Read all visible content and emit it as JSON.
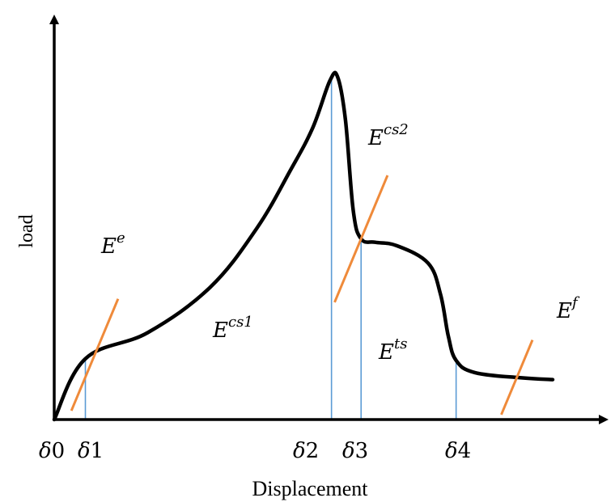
{
  "chart_data": {
    "type": "line",
    "xlabel": "Displacement",
    "ylabel": "load",
    "x_ticks": [
      {
        "sym": "δ",
        "sub": "0"
      },
      {
        "sym": "δ",
        "sub": "1"
      },
      {
        "sym": "δ",
        "sub": "2"
      },
      {
        "sym": "δ",
        "sub": "3"
      },
      {
        "sym": "δ",
        "sub": "4"
      }
    ],
    "energy_labels": [
      {
        "base": "E",
        "sup": "e"
      },
      {
        "base": "E",
        "sup": "cs1"
      },
      {
        "base": "E",
        "sup": "cs2"
      },
      {
        "base": "E",
        "sup": "ts"
      },
      {
        "base": "E",
        "sup": "f"
      }
    ],
    "curve_points": [
      [
        0,
        0
      ],
      [
        1,
        0.175
      ],
      [
        3,
        0.25
      ],
      [
        5,
        0.38
      ],
      [
        6.5,
        0.55
      ],
      [
        7.6,
        0.72
      ],
      [
        8.3,
        0.84
      ],
      [
        8.85,
        0.975
      ],
      [
        9.1,
        0.985
      ],
      [
        9.35,
        0.86
      ],
      [
        9.6,
        0.6
      ],
      [
        9.85,
        0.52
      ],
      [
        10.3,
        0.51
      ],
      [
        11,
        0.5
      ],
      [
        12,
        0.45
      ],
      [
        12.4,
        0.36
      ],
      [
        12.65,
        0.24
      ],
      [
        12.9,
        0.17
      ],
      [
        13.5,
        0.135
      ],
      [
        15,
        0.12
      ],
      [
        16,
        0.115
      ]
    ],
    "key_points": {
      "d0": 0,
      "d1": 1,
      "d2": 8.9,
      "d3": 9.85,
      "d4": 12.9
    },
    "colors": {
      "curve": "#000000",
      "tangent": "#ef8a3a",
      "guide": "#5b9bd5",
      "axis": "#000000"
    }
  }
}
